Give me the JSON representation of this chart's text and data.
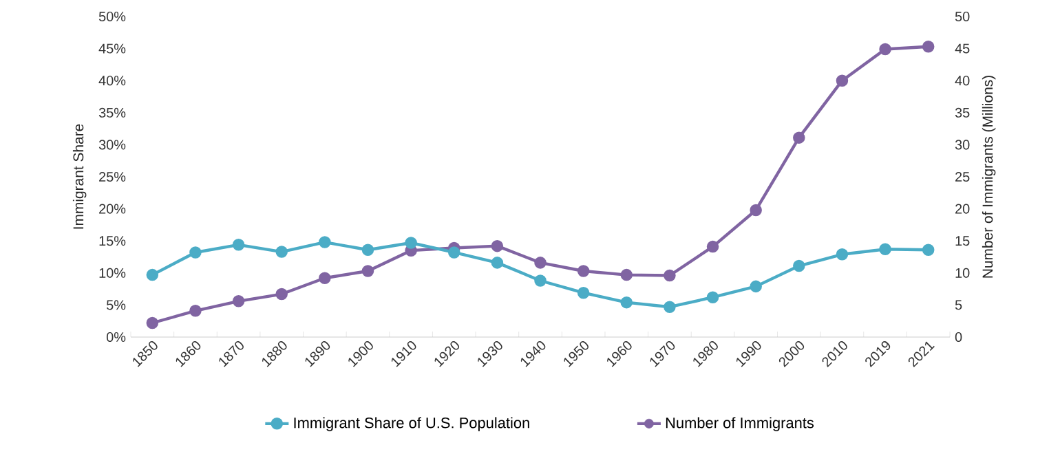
{
  "chart_data": {
    "type": "line",
    "ylabel": "Immigrant Share",
    "y2label": "Number of Immigrants (Millions)",
    "categories": [
      "1850",
      "1860",
      "1870",
      "1880",
      "1890",
      "1900",
      "1910",
      "1920",
      "1930",
      "1940",
      "1950",
      "1960",
      "1970",
      "1980",
      "1990",
      "2000",
      "2010",
      "2019",
      "2021"
    ],
    "series": [
      {
        "name": "Immigrant Share of U.S. Population",
        "color": "#4bacc6",
        "values": [
          9.7,
          13.2,
          14.4,
          13.3,
          14.8,
          13.6,
          14.7,
          13.2,
          11.6,
          8.8,
          6.9,
          5.4,
          4.7,
          6.2,
          7.9,
          11.1,
          12.9,
          13.7,
          13.6
        ]
      },
      {
        "name": "Number of Immigrants",
        "color": "#8064a2",
        "axis": "y2",
        "values": [
          2.2,
          4.1,
          5.6,
          6.7,
          9.2,
          10.3,
          13.5,
          13.9,
          14.2,
          11.6,
          10.3,
          9.7,
          9.6,
          14.1,
          19.8,
          31.1,
          40.0,
          44.9,
          45.3
        ]
      }
    ],
    "ylim": [
      0,
      50
    ],
    "yticks": [
      {
        "value": 0,
        "label": "0%"
      },
      {
        "value": 5,
        "label": "5%"
      },
      {
        "value": 10,
        "label": "10%"
      },
      {
        "value": 15,
        "label": "15%"
      },
      {
        "value": 20,
        "label": "20%"
      },
      {
        "value": 25,
        "label": "25%"
      },
      {
        "value": 30,
        "label": "30%"
      },
      {
        "value": 35,
        "label": "35%"
      },
      {
        "value": 40,
        "label": "40%"
      },
      {
        "value": 45,
        "label": "45%"
      },
      {
        "value": 50,
        "label": "50%"
      }
    ],
    "y2lim": [
      0,
      50
    ],
    "y2ticks": [
      0,
      5,
      10,
      15,
      20,
      25,
      30,
      35,
      40,
      45,
      50
    ],
    "legend": "bottom",
    "marker": "circle",
    "line_style": "solid"
  }
}
